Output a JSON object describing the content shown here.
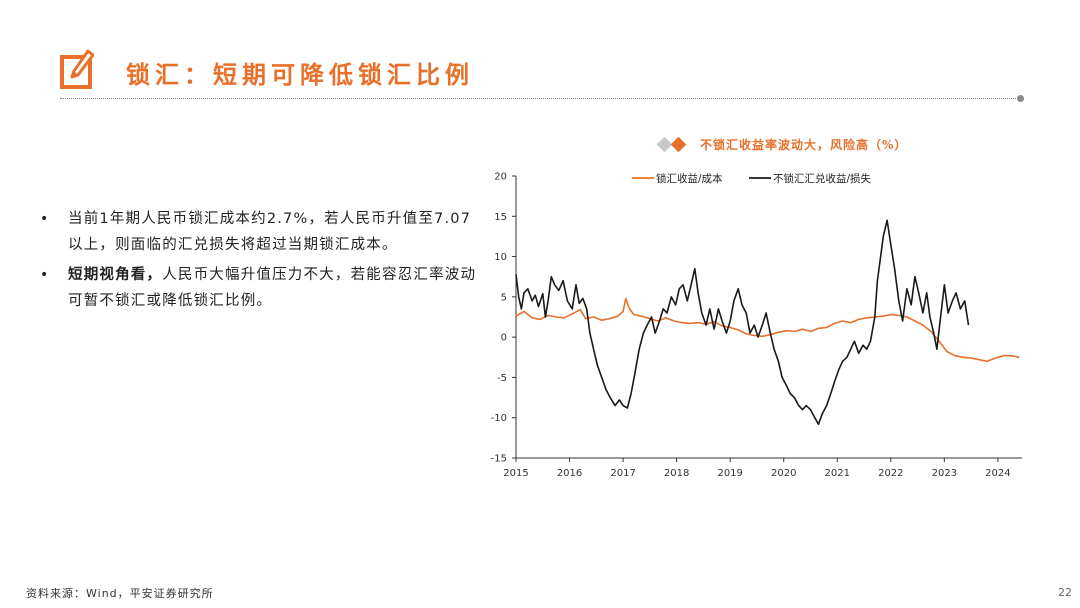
{
  "page": {
    "title": "锁汇：短期可降低锁汇比例",
    "page_number": "22",
    "source": "资料来源：Wind，平安证券研究所"
  },
  "bullets": [
    {
      "bold": "",
      "text": "当前1年期人民币锁汇成本约2.7%，若人民币升值至7.07以上，则面临的汇兑损失将超过当期锁汇成本。"
    },
    {
      "bold": "短期视角看，",
      "text": "人民币大幅升值压力不大，若能容忍汇率波动可暂不锁汇或降低锁汇比例。"
    }
  ],
  "colors": {
    "accent": "#E8702A",
    "black_series": "#1a1a1a",
    "grey_diamond": "#c8c8c8"
  },
  "chart_data": {
    "type": "line",
    "title": "不锁汇收益率波动大，风险高（%）",
    "xlabel": "",
    "ylabel": "",
    "ylim": [
      -15,
      20
    ],
    "yticks": [
      20,
      15,
      10,
      5,
      0,
      -5,
      -10,
      -15
    ],
    "xlim": [
      2015.0,
      2024.45
    ],
    "xticks": [
      "2015",
      "2016",
      "2017",
      "2018",
      "2019",
      "2020",
      "2021",
      "2022",
      "2023",
      "2024"
    ],
    "legend_position": "top",
    "grid": false,
    "series": [
      {
        "name": "锁汇收益/成本",
        "color": "#E8702A",
        "x": [
          2015.0,
          2015.15,
          2015.3,
          2015.45,
          2015.6,
          2015.75,
          2015.9,
          2016.05,
          2016.2,
          2016.3,
          2016.45,
          2016.6,
          2016.75,
          2016.9,
          2017.0,
          2017.05,
          2017.12,
          2017.2,
          2017.35,
          2017.5,
          2017.65,
          2017.8,
          2017.95,
          2018.1,
          2018.25,
          2018.4,
          2018.55,
          2018.7,
          2018.85,
          2019.0,
          2019.15,
          2019.3,
          2019.45,
          2019.6,
          2019.75,
          2019.9,
          2020.05,
          2020.2,
          2020.35,
          2020.5,
          2020.65,
          2020.8,
          2020.95,
          2021.1,
          2021.25,
          2021.4,
          2021.55,
          2021.7,
          2021.85,
          2022.0,
          2022.15,
          2022.3,
          2022.45,
          2022.6,
          2022.75,
          2022.9,
          2023.05,
          2023.2,
          2023.35,
          2023.5,
          2023.65,
          2023.8,
          2023.95,
          2024.1,
          2024.25,
          2024.4
        ],
        "values": [
          2.6,
          3.2,
          2.4,
          2.2,
          2.7,
          2.5,
          2.4,
          2.9,
          3.4,
          2.3,
          2.5,
          2.1,
          2.3,
          2.6,
          3.2,
          4.8,
          3.5,
          2.8,
          2.6,
          2.3,
          2.0,
          2.4,
          2.0,
          1.8,
          1.7,
          1.8,
          1.6,
          1.9,
          1.4,
          1.2,
          0.9,
          0.4,
          0.2,
          0.1,
          0.3,
          0.6,
          0.8,
          0.7,
          1.0,
          0.7,
          1.1,
          1.2,
          1.7,
          2.0,
          1.8,
          2.2,
          2.4,
          2.5,
          2.6,
          2.8,
          2.7,
          2.5,
          2.0,
          1.5,
          0.7,
          -0.5,
          -1.8,
          -2.3,
          -2.5,
          -2.6,
          -2.8,
          -3.0,
          -2.6,
          -2.3,
          -2.3,
          -2.5
        ]
      },
      {
        "name": "不锁汇汇兑收益/损失",
        "color": "#1a1a1a",
        "x": [
          2015.0,
          2015.05,
          2015.1,
          2015.15,
          2015.22,
          2015.3,
          2015.36,
          2015.42,
          2015.5,
          2015.55,
          2015.6,
          2015.66,
          2015.72,
          2015.8,
          2015.88,
          2015.96,
          2016.05,
          2016.12,
          2016.18,
          2016.25,
          2016.32,
          2016.38,
          2016.45,
          2016.52,
          2016.6,
          2016.68,
          2016.76,
          2016.85,
          2016.93,
          2017.0,
          2017.08,
          2017.15,
          2017.22,
          2017.3,
          2017.38,
          2017.45,
          2017.53,
          2017.6,
          2017.68,
          2017.75,
          2017.82,
          2017.9,
          2017.98,
          2018.05,
          2018.12,
          2018.2,
          2018.27,
          2018.34,
          2018.4,
          2018.47,
          2018.55,
          2018.62,
          2018.7,
          2018.78,
          2018.85,
          2018.93,
          2019.0,
          2019.07,
          2019.15,
          2019.22,
          2019.3,
          2019.37,
          2019.45,
          2019.52,
          2019.6,
          2019.67,
          2019.75,
          2019.82,
          2019.9,
          2019.97,
          2020.05,
          2020.12,
          2020.2,
          2020.28,
          2020.35,
          2020.42,
          2020.5,
          2020.58,
          2020.65,
          2020.72,
          2020.8,
          2020.88,
          2020.95,
          2021.03,
          2021.1,
          2021.18,
          2021.25,
          2021.32,
          2021.4,
          2021.48,
          2021.55,
          2021.62,
          2021.7,
          2021.75,
          2021.8,
          2021.86,
          2021.93,
          2022.0,
          2022.07,
          2022.15,
          2022.22,
          2022.3,
          2022.38,
          2022.45,
          2022.52,
          2022.6,
          2022.67,
          2022.73,
          2022.8,
          2022.86,
          2022.92,
          2023.0,
          2023.07,
          2023.15,
          2023.22,
          2023.3,
          2023.38,
          2023.45
        ],
        "values": [
          7.8,
          5.0,
          3.5,
          5.5,
          6.0,
          4.5,
          5.2,
          3.8,
          5.4,
          2.5,
          4.5,
          7.5,
          6.5,
          5.8,
          7.0,
          4.5,
          3.5,
          6.5,
          4.2,
          4.8,
          3.5,
          0.5,
          -1.5,
          -3.5,
          -5.0,
          -6.5,
          -7.5,
          -8.5,
          -7.8,
          -8.5,
          -8.8,
          -7.0,
          -4.5,
          -1.5,
          0.5,
          1.5,
          2.5,
          0.5,
          2.0,
          3.5,
          3.0,
          5.0,
          4.0,
          6.0,
          6.5,
          4.5,
          6.5,
          8.5,
          5.5,
          3.0,
          1.5,
          3.5,
          1.0,
          3.5,
          2.0,
          0.5,
          2.0,
          4.5,
          6.0,
          4.0,
          3.0,
          0.5,
          1.5,
          0.0,
          1.5,
          3.0,
          0.5,
          -1.5,
          -3.0,
          -5.0,
          -6.0,
          -7.0,
          -7.5,
          -8.5,
          -9.0,
          -8.5,
          -9.0,
          -10.0,
          -10.8,
          -9.5,
          -8.5,
          -7.0,
          -5.5,
          -4.0,
          -3.0,
          -2.5,
          -1.5,
          -0.5,
          -2.0,
          -1.0,
          -1.5,
          -0.5,
          2.5,
          7.0,
          9.5,
          12.5,
          14.5,
          11.5,
          8.5,
          4.5,
          2.0,
          6.0,
          4.0,
          7.5,
          5.5,
          3.0,
          5.5,
          2.5,
          0.5,
          -1.5,
          2.0,
          6.5,
          3.0,
          4.5,
          5.5,
          3.5,
          4.5,
          1.5
        ]
      }
    ]
  }
}
